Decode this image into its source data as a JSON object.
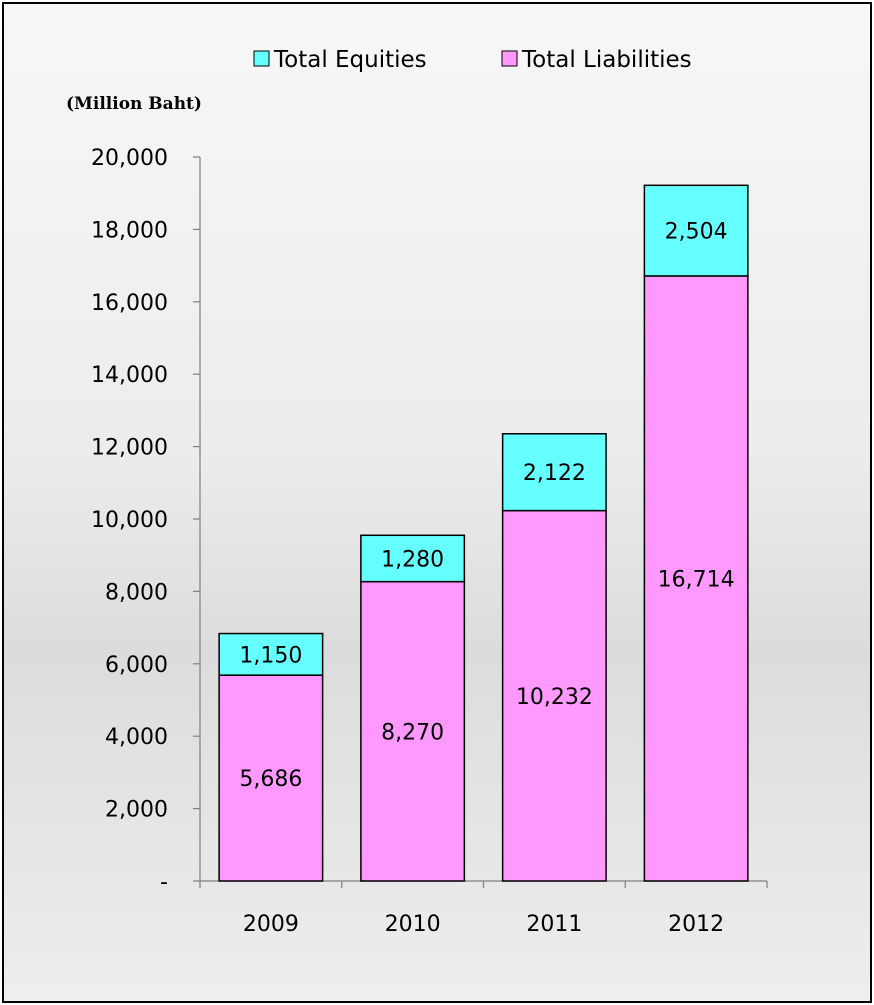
{
  "chart_data": {
    "type": "bar",
    "stacked": true,
    "categories": [
      "2009",
      "2010",
      "2011",
      "2012"
    ],
    "series": [
      {
        "name": "Total Liabilities",
        "values": [
          5686,
          8270,
          10232,
          16714
        ],
        "color": "#ff99ff",
        "labels": [
          "5,686",
          "8,270",
          "10,232",
          "16,714"
        ]
      },
      {
        "name": "Total Equities",
        "values": [
          1150,
          1280,
          2122,
          2504
        ],
        "color": "#66ffff",
        "labels": [
          "1,150",
          "1,280",
          "2,122",
          "2,504"
        ]
      }
    ],
    "ylabel": "(Million Baht)",
    "ylim": [
      0,
      20000
    ],
    "yticks": [
      0,
      2000,
      4000,
      6000,
      8000,
      10000,
      12000,
      14000,
      16000,
      18000,
      20000
    ],
    "ytick_labels": [
      "-",
      "2,000",
      "4,000",
      "6,000",
      "8,000",
      "10,000",
      "12,000",
      "14,000",
      "16,000",
      "18,000",
      "20,000"
    ],
    "legend": {
      "placement": "top-center",
      "entries": [
        "Total Equities",
        "Total Liabilities"
      ]
    },
    "grid": false
  }
}
